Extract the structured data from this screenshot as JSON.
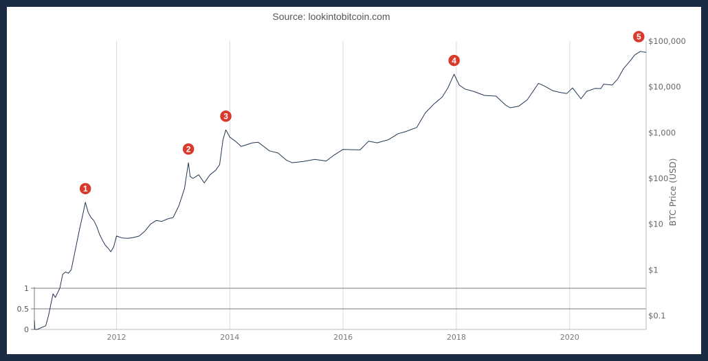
{
  "source_text": "Source: lookintobitcoin.com",
  "colors": {
    "frame": "#1b2b44",
    "background": "#ffffff",
    "line": "#1f3552",
    "grid": "#d9d9d9",
    "badge": "#d83a2c"
  },
  "chart_data": {
    "type": "line",
    "ylabel": "BTC Price (USD)",
    "yscale": "log",
    "ylim": [
      0.03,
      100000
    ],
    "xlim": [
      2010.55,
      2021.35
    ],
    "right_ticks": [
      {
        "value": 100000,
        "label": "$100,000"
      },
      {
        "value": 10000,
        "label": "$10,000"
      },
      {
        "value": 1000,
        "label": "$1,000"
      },
      {
        "value": 100,
        "label": "$100"
      },
      {
        "value": 10,
        "label": "$10"
      },
      {
        "value": 1,
        "label": "$1"
      },
      {
        "value": 0.1,
        "label": "$0.1"
      }
    ],
    "x_ticks": [
      {
        "value": 2012,
        "label": "2012"
      },
      {
        "value": 2014,
        "label": "2014"
      },
      {
        "value": 2016,
        "label": "2016"
      },
      {
        "value": 2018,
        "label": "2018"
      },
      {
        "value": 2020,
        "label": "2020"
      }
    ],
    "left_axis": {
      "ticks": [
        {
          "value": 1,
          "label": "1"
        },
        {
          "value": 0.5,
          "label": "0.5"
        },
        {
          "value": 0,
          "label": "0"
        }
      ],
      "reference_lines": [
        1,
        0.5
      ],
      "range": [
        0,
        1
      ]
    },
    "series": [
      {
        "points": [
          [
            2010.55,
            0.08
          ],
          [
            2010.56,
            0.05
          ],
          [
            2010.6,
            0.05
          ],
          [
            2010.75,
            0.06
          ],
          [
            2010.8,
            0.1
          ],
          [
            2010.85,
            0.2
          ],
          [
            2010.88,
            0.3
          ],
          [
            2010.92,
            0.25
          ],
          [
            2010.95,
            0.3
          ],
          [
            2011.0,
            0.4
          ],
          [
            2011.05,
            0.8
          ],
          [
            2011.1,
            0.9
          ],
          [
            2011.15,
            0.85
          ],
          [
            2011.2,
            1.0
          ],
          [
            2011.25,
            2.0
          ],
          [
            2011.3,
            4.0
          ],
          [
            2011.35,
            8.0
          ],
          [
            2011.4,
            15.0
          ],
          [
            2011.45,
            30.0
          ],
          [
            2011.5,
            18.0
          ],
          [
            2011.55,
            14.0
          ],
          [
            2011.6,
            12.0
          ],
          [
            2011.65,
            9.0
          ],
          [
            2011.7,
            6.0
          ],
          [
            2011.75,
            4.5
          ],
          [
            2011.8,
            3.5
          ],
          [
            2011.85,
            3.0
          ],
          [
            2011.9,
            2.5
          ],
          [
            2011.95,
            3.2
          ],
          [
            2012.0,
            5.5
          ],
          [
            2012.1,
            5.0
          ],
          [
            2012.2,
            4.9
          ],
          [
            2012.3,
            5.1
          ],
          [
            2012.4,
            5.5
          ],
          [
            2012.5,
            7.0
          ],
          [
            2012.6,
            10.0
          ],
          [
            2012.7,
            12.0
          ],
          [
            2012.8,
            11.5
          ],
          [
            2012.9,
            13.0
          ],
          [
            2013.0,
            14.0
          ],
          [
            2013.1,
            25.0
          ],
          [
            2013.2,
            60.0
          ],
          [
            2013.27,
            220.0
          ],
          [
            2013.3,
            110.0
          ],
          [
            2013.35,
            100.0
          ],
          [
            2013.45,
            120.0
          ],
          [
            2013.55,
            80.0
          ],
          [
            2013.65,
            120.0
          ],
          [
            2013.75,
            150.0
          ],
          [
            2013.82,
            200.0
          ],
          [
            2013.88,
            700.0
          ],
          [
            2013.93,
            1150.0
          ],
          [
            2014.0,
            800.0
          ],
          [
            2014.1,
            650.0
          ],
          [
            2014.2,
            500.0
          ],
          [
            2014.4,
            600.0
          ],
          [
            2014.5,
            620.0
          ],
          [
            2014.7,
            400.0
          ],
          [
            2014.85,
            360.0
          ],
          [
            2015.0,
            250.0
          ],
          [
            2015.1,
            220.0
          ],
          [
            2015.3,
            235.0
          ],
          [
            2015.5,
            260.0
          ],
          [
            2015.7,
            240.0
          ],
          [
            2015.85,
            330.0
          ],
          [
            2016.0,
            430.0
          ],
          [
            2016.3,
            420.0
          ],
          [
            2016.45,
            650.0
          ],
          [
            2016.6,
            600.0
          ],
          [
            2016.8,
            700.0
          ],
          [
            2016.97,
            950.0
          ],
          [
            2017.1,
            1050.0
          ],
          [
            2017.3,
            1300.0
          ],
          [
            2017.45,
            2700.0
          ],
          [
            2017.6,
            4200.0
          ],
          [
            2017.75,
            6000.0
          ],
          [
            2017.85,
            9500.0
          ],
          [
            2017.96,
            19000.0
          ],
          [
            2018.05,
            11000.0
          ],
          [
            2018.15,
            9000.0
          ],
          [
            2018.3,
            8000.0
          ],
          [
            2018.5,
            6500.0
          ],
          [
            2018.7,
            6300.0
          ],
          [
            2018.87,
            4000.0
          ],
          [
            2018.95,
            3500.0
          ],
          [
            2019.1,
            3800.0
          ],
          [
            2019.25,
            5200.0
          ],
          [
            2019.45,
            12000.0
          ],
          [
            2019.55,
            10500.0
          ],
          [
            2019.7,
            8300.0
          ],
          [
            2019.85,
            7500.0
          ],
          [
            2019.95,
            7200.0
          ],
          [
            2020.05,
            9500.0
          ],
          [
            2020.2,
            5500.0
          ],
          [
            2020.3,
            8000.0
          ],
          [
            2020.45,
            9300.0
          ],
          [
            2020.55,
            9200.0
          ],
          [
            2020.6,
            11500.0
          ],
          [
            2020.75,
            11000.0
          ],
          [
            2020.85,
            15000.0
          ],
          [
            2020.95,
            25000.0
          ],
          [
            2021.05,
            35000.0
          ],
          [
            2021.15,
            50000.0
          ],
          [
            2021.25,
            60000.0
          ],
          [
            2021.3,
            58000.0
          ],
          [
            2021.35,
            57000.0
          ]
        ]
      }
    ],
    "annotations": [
      {
        "label": "1",
        "x": 2011.45,
        "y": 30.0
      },
      {
        "label": "2",
        "x": 2013.27,
        "y": 220.0
      },
      {
        "label": "3",
        "x": 2013.93,
        "y": 1150.0
      },
      {
        "label": "4",
        "x": 2017.96,
        "y": 19000.0
      },
      {
        "label": "5",
        "x": 2021.22,
        "y": 63000.0
      }
    ]
  }
}
